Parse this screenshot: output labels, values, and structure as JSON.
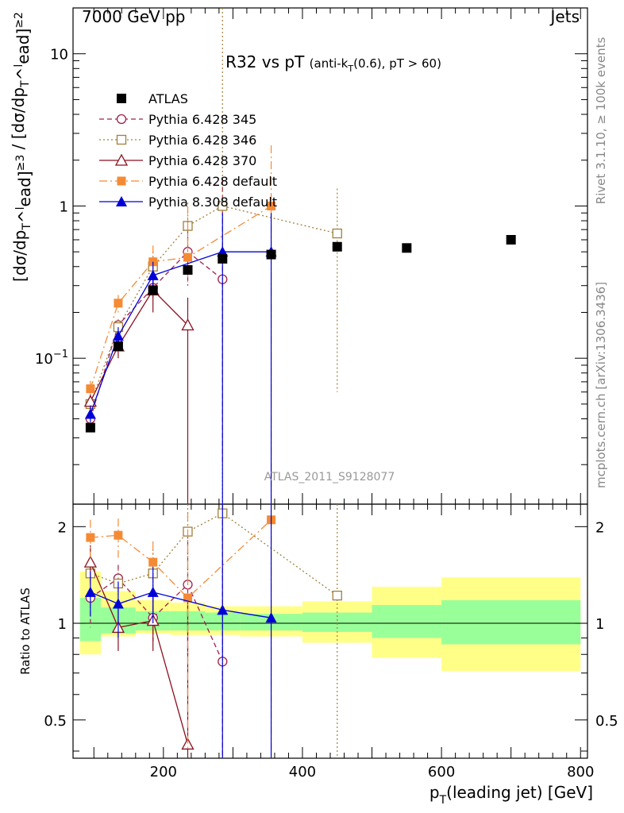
{
  "header": {
    "left": "7000 GeV pp",
    "right": "Jets"
  },
  "side_text": {
    "rivet": "Rivet 3.1.10, ≥ 100k events",
    "mcplots": "mcplots.cern.ch [arXiv:1306.3436]"
  },
  "chart_data": {
    "type": "scatter",
    "title": "R32 vs pT (anti-k_T(0.6), pT > 60)",
    "analysis_tag": "ATLAS_2011_S9128077",
    "xlabel": "p_T(leading jet) [GeV]",
    "ylabel": "[dσ/dp_T^lead]^≥3 / [dσ/dp_T^lead]^≥2",
    "ratio_ylabel": "Ratio to ATLAS",
    "xlim": [
      70,
      810
    ],
    "ylim": [
      0.011,
      20
    ],
    "yscale": "log",
    "ratio_ylim": [
      0.38,
      2.35
    ],
    "ratio_yscale": "log",
    "x_ticks": [
      200,
      400,
      600,
      800
    ],
    "y_ticks": [
      {
        "v": 10,
        "t": "10"
      },
      {
        "v": 1,
        "t": "1"
      },
      {
        "v": 0.1,
        "t": "10^-1"
      }
    ],
    "ratio_ticks": [
      {
        "v": 2,
        "t": "2"
      },
      {
        "v": 1,
        "t": "1"
      },
      {
        "v": 0.5,
        "t": "0.5"
      }
    ],
    "legend_position": "top-left",
    "colors": {
      "green_band": "#99ff99",
      "yellow_band": "#ffff88"
    },
    "data": {
      "name": "ATLAS",
      "x": [
        95,
        135,
        185,
        235,
        285,
        355,
        450,
        550,
        700
      ],
      "y": [
        0.035,
        0.12,
        0.28,
        0.38,
        0.45,
        0.48,
        0.54,
        0.53,
        0.6
      ],
      "bins": [
        [
          80,
          110
        ],
        [
          110,
          160
        ],
        [
          160,
          210
        ],
        [
          210,
          260
        ],
        [
          260,
          310
        ],
        [
          310,
          400
        ],
        [
          400,
          500
        ],
        [
          500,
          600
        ],
        [
          600,
          800
        ]
      ],
      "green_band": [
        [
          0.88,
          1.2
        ],
        [
          0.93,
          1.12
        ],
        [
          0.95,
          1.09
        ],
        [
          0.95,
          1.09
        ],
        [
          0.95,
          1.08
        ],
        [
          0.95,
          1.07
        ],
        [
          0.94,
          1.08
        ],
        [
          0.9,
          1.14
        ],
        [
          0.86,
          1.18
        ]
      ],
      "yellow_band": [
        [
          0.8,
          1.45
        ],
        [
          0.91,
          1.26
        ],
        [
          0.93,
          1.18
        ],
        [
          0.92,
          1.16
        ],
        [
          0.92,
          1.13
        ],
        [
          0.91,
          1.13
        ],
        [
          0.87,
          1.17
        ],
        [
          0.78,
          1.3
        ],
        [
          0.71,
          1.39
        ]
      ]
    },
    "series": [
      {
        "name": "Pythia 6.428 345",
        "color": "#a01f50",
        "dash": "6,4",
        "marker": "circle-open",
        "x": [
          95,
          135,
          185,
          235,
          285
        ],
        "y": [
          0.04,
          0.165,
          0.29,
          0.5,
          0.33
        ],
        "yerr": [
          [
            0.035,
            0.046
          ],
          [
            0.15,
            0.18
          ],
          [
            0.24,
            0.34
          ],
          [
            0.3,
            0.8
          ],
          [
            0.02,
            1.5
          ]
        ],
        "ratio": [
          1.2,
          1.38,
          1.04,
          1.32,
          0.76
        ],
        "ratio_err": [
          [
            0.97,
            1.45
          ],
          [
            1.25,
            1.52
          ],
          [
            0.88,
            1.2
          ],
          [
            0.8,
            1.9
          ],
          [
            0.38,
            2.35
          ]
        ]
      },
      {
        "name": "Pythia 6.428 346",
        "color": "#a0803c",
        "dash": "2,3",
        "marker": "square-open",
        "x": [
          95,
          135,
          185,
          235,
          285,
          450
        ],
        "y": [
          0.05,
          0.16,
          0.4,
          0.74,
          1.0,
          0.66
        ],
        "yerr": [
          [
            0.044,
            0.057
          ],
          [
            0.14,
            0.18
          ],
          [
            0.32,
            0.5
          ],
          [
            0.5,
            1.05
          ],
          [
            0.011,
            20
          ],
          [
            0.06,
            1.3
          ]
        ],
        "ratio": [
          1.43,
          1.33,
          1.43,
          1.93,
          2.2,
          1.22
        ],
        "ratio_err": [
          [
            1.3,
            1.58
          ],
          [
            1.2,
            1.47
          ],
          [
            1.2,
            1.7
          ],
          [
            1.3,
            2.35
          ],
          [
            0.38,
            2.35
          ],
          [
            0.38,
            2.35
          ]
        ]
      },
      {
        "name": "Pythia 6.428 370",
        "color": "#8b0f1e",
        "dash": "",
        "marker": "triangle-open",
        "x": [
          95,
          135,
          185,
          235
        ],
        "y": [
          0.052,
          0.12,
          0.28,
          0.165
        ],
        "yerr": [
          [
            0.046,
            0.058
          ],
          [
            0.1,
            0.145
          ],
          [
            0.2,
            0.38
          ],
          [
            0.011,
            0.25
          ]
        ],
        "ratio": [
          1.55,
          0.97,
          1.02,
          0.42
        ],
        "ratio_err": [
          [
            1.35,
            1.75
          ],
          [
            0.82,
            1.12
          ],
          [
            0.82,
            1.22
          ],
          [
            0.38,
            1.2
          ]
        ]
      },
      {
        "name": "Pythia 6.428 default",
        "color": "#f58a35",
        "dash": "10,4,2,4",
        "marker": "square-filled",
        "x": [
          95,
          135,
          185,
          235,
          355
        ],
        "y": [
          0.063,
          0.23,
          0.43,
          0.46,
          1.0
        ],
        "yerr": [
          [
            0.056,
            0.071
          ],
          [
            0.2,
            0.26
          ],
          [
            0.34,
            0.55
          ],
          [
            0.3,
            1.0
          ],
          [
            0.011,
            2.5
          ]
        ],
        "ratio": [
          1.85,
          1.88,
          1.55,
          1.2,
          2.1
        ],
        "ratio_err": [
          [
            1.6,
            2.1
          ],
          [
            1.6,
            2.12
          ],
          [
            1.3,
            1.8
          ],
          [
            0.4,
            2.2
          ],
          [
            0.38,
            2.35
          ]
        ]
      },
      {
        "name": "Pythia 8.308 default",
        "color": "#0000d8",
        "dash": "",
        "marker": "triangle-filled",
        "x": [
          95,
          135,
          185,
          285,
          355
        ],
        "y": [
          0.043,
          0.14,
          0.35,
          0.5,
          0.5
        ],
        "yerr": [
          [
            0.038,
            0.049
          ],
          [
            0.12,
            0.16
          ],
          [
            0.28,
            0.43
          ],
          [
            0.011,
            0.9
          ],
          [
            0.011,
            0.9
          ]
        ],
        "ratio": [
          1.25,
          1.15,
          1.25,
          1.1,
          1.04
        ],
        "ratio_err": [
          [
            1.05,
            1.45
          ],
          [
            0.9,
            1.35
          ],
          [
            1.0,
            1.5
          ],
          [
            0.38,
            2.35
          ],
          [
            0.38,
            2.35
          ]
        ]
      }
    ]
  }
}
